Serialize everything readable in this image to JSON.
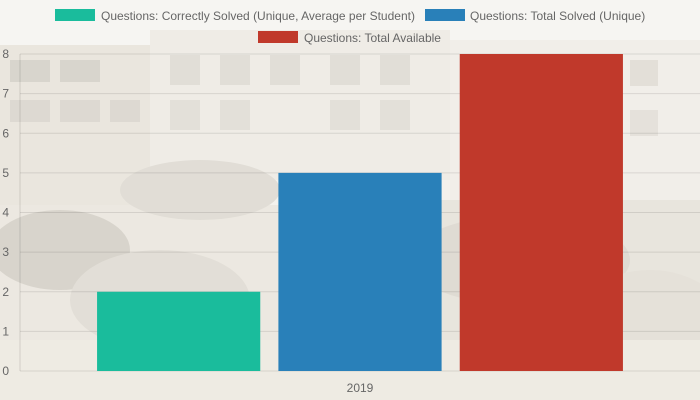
{
  "chart_data": {
    "type": "bar",
    "categories": [
      "2019"
    ],
    "series": [
      {
        "name": "Questions: Correctly Solved (Unique, Average per Student)",
        "values": [
          2
        ],
        "color": "#1abc9c"
      },
      {
        "name": "Questions: Total Solved (Unique)",
        "values": [
          5
        ],
        "color": "#2980b9"
      },
      {
        "name": "Questions: Total Available",
        "values": [
          8
        ],
        "color": "#c0392b"
      }
    ],
    "ylim": [
      0,
      8
    ],
    "yticks": [
      0,
      1,
      2,
      3,
      4,
      5,
      6,
      7,
      8
    ],
    "grid": true,
    "legend_position": "top"
  }
}
